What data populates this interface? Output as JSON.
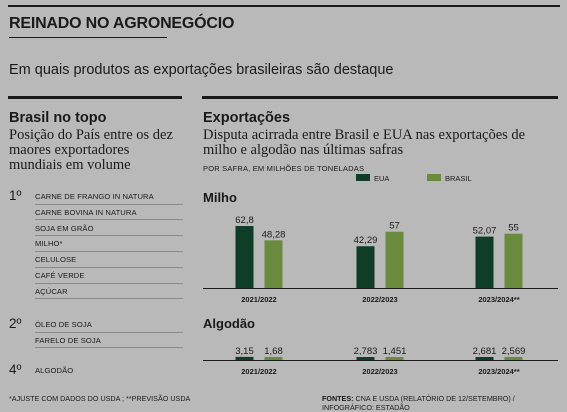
{
  "header": {
    "title": "REINADO NO AGRONEGÓCIO",
    "subtitle": "Em quais produtos as exportações brasileiras são destaque"
  },
  "left": {
    "heading": "Brasil no topo",
    "description": "Posição do País entre os dez maores exportadores mundiais em volume",
    "groups": [
      {
        "rank": "1º",
        "items": [
          "CARNE DE FRANGO IN NATURA",
          "CARNE BOVINA IN NATURA",
          "SOJA EM GRÃO",
          "MILHO*",
          "CELULOSE",
          "CAFÉ VERDE",
          "AÇÚCAR"
        ]
      },
      {
        "rank": "2º",
        "items": [
          "ÓLEO DE SOJA",
          "FARELO DE SOJA"
        ]
      },
      {
        "rank": "4º",
        "items": [
          "ALGODÃO"
        ]
      }
    ]
  },
  "right": {
    "heading": "Exportações",
    "description": "Disputa acirrada entre Brasil e EUA nas exportações de milho e algodão nas últimas safras",
    "unit_note": "POR SAFRA, EM MILHÕES DE TONELADAS",
    "legend": [
      {
        "name": "EUA",
        "color": "#0f3d28"
      },
      {
        "name": "BRASIL",
        "color": "#6a8a3d"
      }
    ]
  },
  "chart_data": [
    {
      "type": "bar",
      "title": "Milho",
      "categories": [
        "2021/2022",
        "2022/2023",
        "2023/2024**"
      ],
      "series": [
        {
          "name": "EUA",
          "values": [
            62.8,
            42.29,
            52.07
          ],
          "labels": [
            "62,8",
            "42,29",
            "52,07"
          ]
        },
        {
          "name": "BRASIL",
          "values": [
            48.28,
            57,
            55
          ],
          "labels": [
            "48,28",
            "57",
            "55"
          ]
        }
      ],
      "ylim": [
        0,
        70
      ]
    },
    {
      "type": "bar",
      "title": "Algodão",
      "categories": [
        "2021/2022",
        "2022/2023",
        "2023/2024**"
      ],
      "series": [
        {
          "name": "EUA",
          "values": [
            3.15,
            2.783,
            2.681
          ],
          "labels": [
            "3,15",
            "2,783",
            "2,681"
          ]
        },
        {
          "name": "BRASIL",
          "values": [
            1.68,
            1.451,
            2.569
          ],
          "labels": [
            "1,68",
            "1,451",
            "2,569"
          ]
        }
      ],
      "ylim": [
        0,
        70
      ]
    }
  ],
  "footer": {
    "note": "*AJUSTE COM DADOS DO USDA ; **PREVISÃO USDA",
    "sources_label": "FONTES:",
    "sources_text": " CNA E USDA (RELATÓRIO DE 12/SETEMBRO) / INFOGRÁFICO: ESTADÃO"
  }
}
